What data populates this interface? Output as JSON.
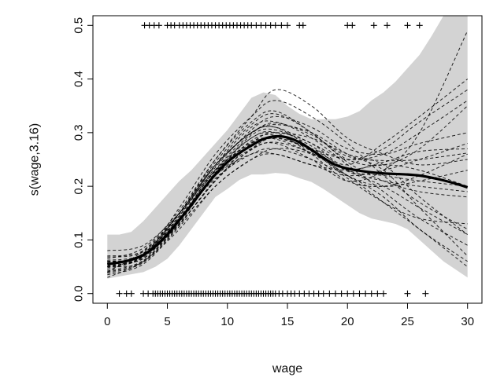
{
  "chart_data": {
    "type": "line",
    "title": "",
    "xlabel": "wage",
    "ylabel": "s(wage,3.16)",
    "xlim": [
      -1.2,
      31.2
    ],
    "ylim": [
      -0.018,
      0.518
    ],
    "xticks": [
      0,
      5,
      10,
      15,
      20,
      25,
      30
    ],
    "yticks": [
      0.0,
      0.1,
      0.2,
      0.3,
      0.4,
      0.5
    ],
    "xtick_labels": [
      "0",
      "5",
      "10",
      "15",
      "20",
      "25",
      "30"
    ],
    "ytick_labels": [
      "0.0",
      "0.1",
      "0.2",
      "0.3",
      "0.4",
      "0.5"
    ],
    "grid": false,
    "legend": "none",
    "colors": {
      "fit": "#000000",
      "band": "#d3d3d3",
      "samples": "#000000",
      "rug": "#000000"
    },
    "band_x": [
      0,
      1,
      2,
      3,
      4,
      5,
      6,
      7,
      8,
      9,
      10,
      11,
      12,
      13,
      14,
      15,
      16,
      17,
      18,
      19,
      20,
      21,
      22,
      23,
      24,
      25,
      26,
      27,
      28,
      29,
      30
    ],
    "band_lower": [
      0.028,
      0.032,
      0.036,
      0.04,
      0.05,
      0.065,
      0.09,
      0.12,
      0.15,
      0.18,
      0.195,
      0.212,
      0.222,
      0.222,
      0.225,
      0.223,
      0.215,
      0.208,
      0.195,
      0.18,
      0.165,
      0.15,
      0.14,
      0.135,
      0.13,
      0.12,
      0.1,
      0.08,
      0.06,
      0.045,
      0.03
    ],
    "band_upper": [
      0.11,
      0.11,
      0.115,
      0.135,
      0.16,
      0.185,
      0.21,
      0.23,
      0.255,
      0.28,
      0.305,
      0.335,
      0.365,
      0.375,
      0.37,
      0.35,
      0.335,
      0.325,
      0.325,
      0.325,
      0.33,
      0.34,
      0.36,
      0.375,
      0.395,
      0.42,
      0.445,
      0.48,
      0.52,
      0.52,
      0.52
    ],
    "fit": {
      "x": [
        0,
        1,
        2,
        3,
        4,
        5,
        6,
        7,
        8,
        9,
        10,
        11,
        12,
        13,
        14,
        15,
        16,
        17,
        18,
        19,
        20,
        21,
        22,
        23,
        24,
        25,
        26,
        27,
        28,
        29,
        30
      ],
      "y": [
        0.055,
        0.058,
        0.063,
        0.072,
        0.088,
        0.11,
        0.137,
        0.165,
        0.195,
        0.222,
        0.245,
        0.262,
        0.276,
        0.288,
        0.293,
        0.291,
        0.282,
        0.268,
        0.253,
        0.24,
        0.233,
        0.229,
        0.226,
        0.224,
        0.223,
        0.222,
        0.22,
        0.216,
        0.211,
        0.205,
        0.198
      ]
    },
    "samples_x": [
      0,
      3,
      6,
      9,
      12,
      14,
      17,
      20,
      23,
      26,
      30
    ],
    "samples": [
      [
        0.04,
        0.08,
        0.15,
        0.24,
        0.3,
        0.315,
        0.3,
        0.26,
        0.23,
        0.16,
        0.07
      ],
      [
        0.06,
        0.07,
        0.13,
        0.21,
        0.27,
        0.29,
        0.27,
        0.24,
        0.28,
        0.33,
        0.4
      ],
      [
        0.05,
        0.06,
        0.14,
        0.23,
        0.29,
        0.3,
        0.26,
        0.21,
        0.2,
        0.22,
        0.26
      ],
      [
        0.03,
        0.06,
        0.12,
        0.2,
        0.25,
        0.27,
        0.26,
        0.22,
        0.17,
        0.12,
        0.05
      ],
      [
        0.07,
        0.08,
        0.15,
        0.25,
        0.32,
        0.34,
        0.3,
        0.25,
        0.24,
        0.27,
        0.35
      ],
      [
        0.05,
        0.07,
        0.16,
        0.26,
        0.33,
        0.36,
        0.33,
        0.28,
        0.22,
        0.17,
        0.12
      ],
      [
        0.06,
        0.065,
        0.14,
        0.22,
        0.26,
        0.26,
        0.24,
        0.22,
        0.23,
        0.25,
        0.28
      ],
      [
        0.08,
        0.09,
        0.15,
        0.23,
        0.28,
        0.29,
        0.27,
        0.25,
        0.26,
        0.3,
        0.36
      ],
      [
        0.04,
        0.06,
        0.13,
        0.21,
        0.28,
        0.3,
        0.28,
        0.23,
        0.21,
        0.2,
        0.19
      ],
      [
        0.05,
        0.075,
        0.145,
        0.24,
        0.31,
        0.32,
        0.29,
        0.24,
        0.19,
        0.14,
        0.09
      ],
      [
        0.06,
        0.07,
        0.14,
        0.22,
        0.27,
        0.28,
        0.25,
        0.21,
        0.23,
        0.3,
        0.49
      ],
      [
        0.045,
        0.068,
        0.138,
        0.225,
        0.295,
        0.305,
        0.275,
        0.23,
        0.22,
        0.21,
        0.2
      ],
      [
        0.055,
        0.075,
        0.15,
        0.24,
        0.3,
        0.31,
        0.27,
        0.22,
        0.2,
        0.21,
        0.23
      ],
      [
        0.035,
        0.055,
        0.125,
        0.2,
        0.25,
        0.26,
        0.24,
        0.23,
        0.24,
        0.23,
        0.2
      ],
      [
        0.065,
        0.085,
        0.155,
        0.25,
        0.33,
        0.38,
        0.35,
        0.29,
        0.26,
        0.24,
        0.25
      ],
      [
        0.05,
        0.07,
        0.14,
        0.215,
        0.26,
        0.27,
        0.25,
        0.22,
        0.18,
        0.12,
        0.06
      ],
      [
        0.058,
        0.072,
        0.145,
        0.235,
        0.305,
        0.33,
        0.31,
        0.27,
        0.26,
        0.28,
        0.3
      ],
      [
        0.042,
        0.062,
        0.132,
        0.222,
        0.285,
        0.295,
        0.265,
        0.215,
        0.17,
        0.14,
        0.13
      ],
      [
        0.068,
        0.078,
        0.148,
        0.238,
        0.3,
        0.31,
        0.28,
        0.25,
        0.27,
        0.32,
        0.38
      ],
      [
        0.052,
        0.066,
        0.136,
        0.226,
        0.29,
        0.3,
        0.29,
        0.26,
        0.24,
        0.18,
        0.11
      ],
      [
        0.048,
        0.07,
        0.15,
        0.245,
        0.315,
        0.335,
        0.3,
        0.245,
        0.21,
        0.19,
        0.18
      ],
      [
        0.062,
        0.074,
        0.142,
        0.228,
        0.282,
        0.288,
        0.262,
        0.232,
        0.245,
        0.265,
        0.27
      ],
      [
        0.038,
        0.058,
        0.128,
        0.212,
        0.268,
        0.282,
        0.262,
        0.228,
        0.2,
        0.16,
        0.11
      ],
      [
        0.056,
        0.071,
        0.139,
        0.231,
        0.298,
        0.318,
        0.296,
        0.256,
        0.248,
        0.25,
        0.262
      ]
    ],
    "rug_top_x": [
      3.1,
      3.5,
      3.9,
      4.3,
      5.0,
      5.3,
      5.6,
      6.0,
      6.3,
      6.6,
      6.9,
      7.2,
      7.5,
      7.8,
      8.1,
      8.4,
      8.7,
      9.0,
      9.3,
      9.6,
      9.9,
      10.2,
      10.5,
      10.8,
      11.1,
      11.4,
      11.7,
      12.0,
      12.4,
      12.8,
      13.2,
      13.6,
      14.0,
      14.5,
      15.0,
      16.0,
      16.3,
      20.0,
      20.4,
      22.2,
      23.3,
      25.0,
      26.0
    ],
    "rug_bottom_x": [
      1.0,
      1.6,
      2.0,
      3.0,
      3.4,
      3.8,
      4.0,
      4.2,
      4.4,
      4.6,
      4.8,
      5.0,
      5.2,
      5.4,
      5.6,
      5.8,
      6.0,
      6.2,
      6.4,
      6.6,
      6.8,
      7.0,
      7.2,
      7.4,
      7.6,
      7.8,
      8.0,
      8.2,
      8.4,
      8.6,
      8.8,
      9.0,
      9.2,
      9.4,
      9.6,
      9.8,
      10.0,
      10.2,
      10.4,
      10.6,
      10.8,
      11.0,
      11.2,
      11.4,
      11.6,
      11.8,
      12.0,
      12.2,
      12.4,
      12.6,
      12.8,
      13.0,
      13.2,
      13.4,
      13.6,
      13.8,
      14.0,
      14.3,
      14.6,
      15.0,
      15.3,
      15.6,
      16.0,
      16.4,
      16.8,
      17.2,
      17.6,
      18.0,
      18.5,
      19.0,
      19.5,
      20.0,
      20.5,
      21.0,
      21.5,
      22.0,
      22.5,
      23.0,
      25.0,
      26.5
    ]
  }
}
